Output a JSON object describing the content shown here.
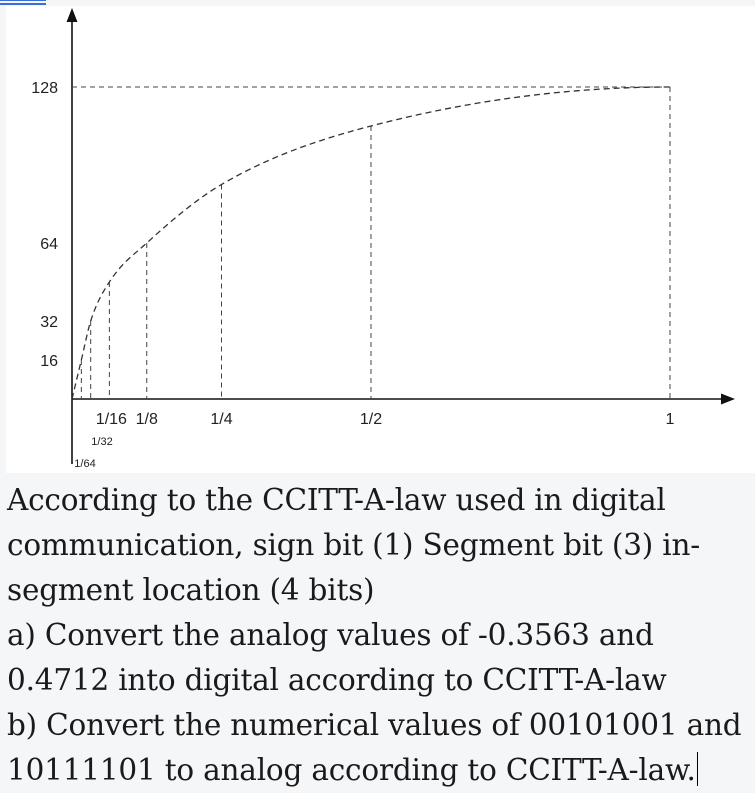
{
  "chart_data": {
    "type": "line",
    "title": "",
    "xlabel": "",
    "ylabel": "",
    "x_ticks": [
      {
        "value": 0.0625,
        "label": "1/16"
      },
      {
        "value": 0.125,
        "label": "1/8"
      },
      {
        "value": 0.25,
        "label": "1/4"
      },
      {
        "value": 0.5,
        "label": "1/2"
      },
      {
        "value": 1,
        "label": "1"
      }
    ],
    "x_small_ticks": [
      {
        "value": 0.03125,
        "label": "1/32"
      },
      {
        "value": 0.015625,
        "label": "1/64"
      }
    ],
    "y_ticks": [
      16,
      32,
      64,
      128
    ],
    "xlim": [
      0,
      1.1
    ],
    "ylim": [
      0,
      145
    ],
    "series": [
      {
        "style": "dashed",
        "x": [
          0,
          0.015625,
          0.03125,
          0.0625,
          0.125,
          0.25,
          0.5,
          1
        ],
        "y": [
          0,
          16,
          32,
          48,
          64,
          88,
          112,
          128
        ]
      }
    ],
    "guides": {
      "vertical_dashed_at": [
        0.015625,
        0.03125,
        0.0625,
        0.125,
        0.25,
        0.5,
        1
      ],
      "horizontal_dashed_at": 128
    }
  },
  "question": {
    "lines": [
      "According to the CCITT-A-law used in digital",
      "communication, sign bit (1) Segment bit (3) in-",
      "segment location (4 bits)",
      "a) Convert the analog values of -0.3563 and",
      "0.4712 into digital according to CCITT-A-law",
      "b) Convert the numerical values of 00101001 and",
      "10111101 to analog according to CCITT-A-law."
    ]
  }
}
